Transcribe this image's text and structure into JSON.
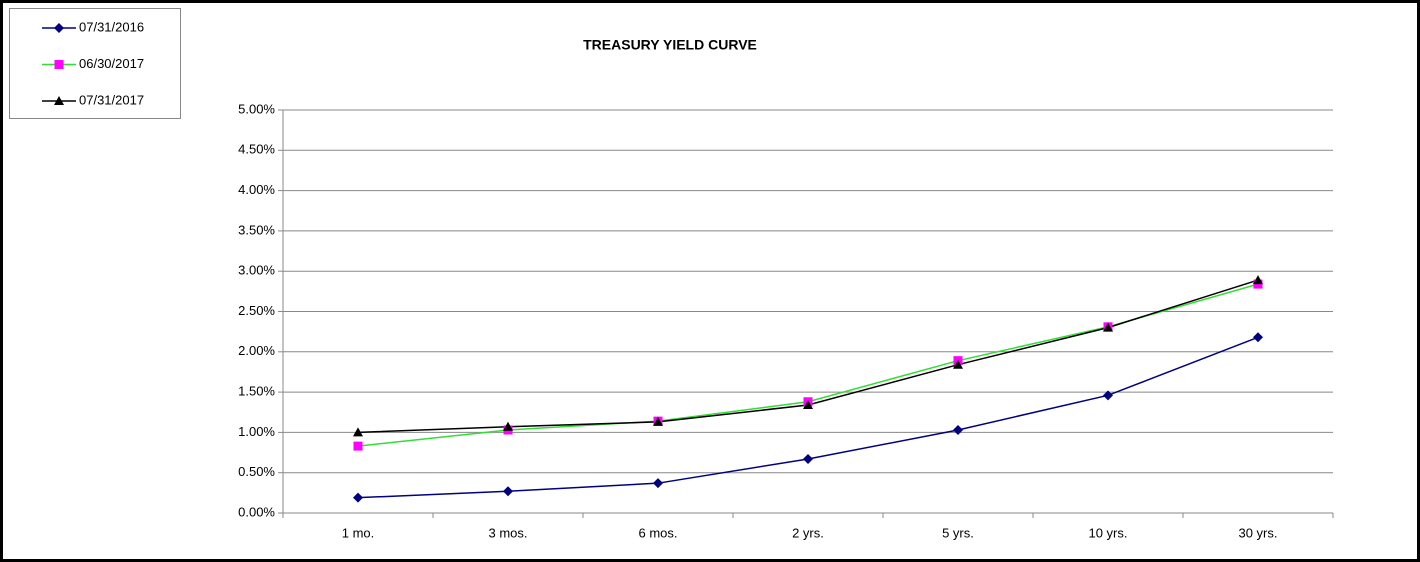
{
  "chart_data": {
    "type": "line",
    "title": "TREASURY YIELD CURVE",
    "categories": [
      "1 mo.",
      "3 mos.",
      "6 mos.",
      "2 yrs.",
      "5 yrs.",
      "10 yrs.",
      "30 yrs."
    ],
    "series": [
      {
        "name": "07/31/2016",
        "color": "#000080",
        "marker": "diamond",
        "marker_color": "#000080",
        "values": [
          0.19,
          0.27,
          0.37,
          0.67,
          1.03,
          1.46,
          2.18
        ]
      },
      {
        "name": "06/30/2017",
        "color": "#33dd33",
        "marker": "square",
        "marker_color": "#ff00ff",
        "values": [
          0.83,
          1.03,
          1.14,
          1.38,
          1.89,
          2.31,
          2.84
        ]
      },
      {
        "name": "07/31/2017",
        "color": "#000000",
        "marker": "triangle",
        "marker_color": "#000000",
        "values": [
          1.0,
          1.07,
          1.13,
          1.34,
          1.84,
          2.3,
          2.89
        ]
      }
    ],
    "ylim": [
      0,
      5
    ],
    "yticks": [
      {
        "value": 0,
        "label": "0.00%"
      },
      {
        "value": 0.5,
        "label": "0.50%"
      },
      {
        "value": 1,
        "label": "1.00%"
      },
      {
        "value": 1.5,
        "label": "1.50%"
      },
      {
        "value": 2,
        "label": "2.00%"
      },
      {
        "value": 2.5,
        "label": "2.50%"
      },
      {
        "value": 3,
        "label": "3.00%"
      },
      {
        "value": 3.5,
        "label": "3.50%"
      },
      {
        "value": 4,
        "label": "4.00%"
      },
      {
        "value": 4.5,
        "label": "4.50%"
      },
      {
        "value": 5,
        "label": "5.00%"
      }
    ],
    "grid": true,
    "legend": "top-left"
  }
}
